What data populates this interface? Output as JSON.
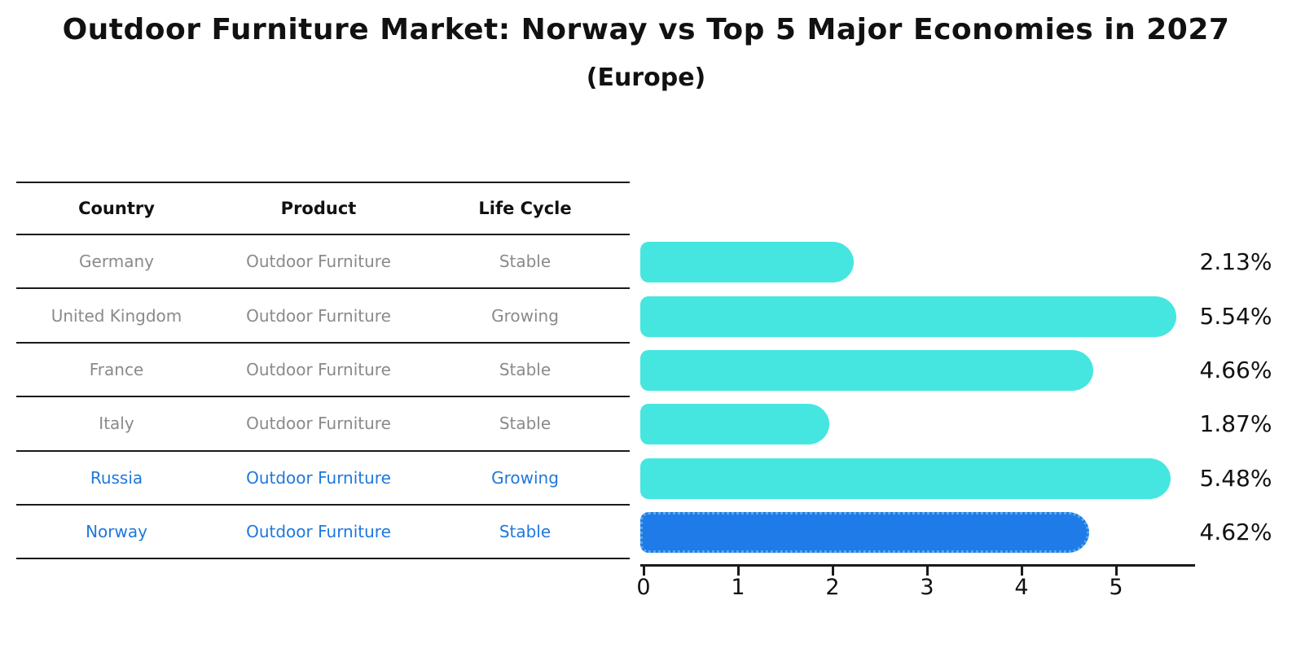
{
  "title": "Outdoor Furniture Market: Norway vs Top 5 Major Economies in 2027",
  "subtitle": "(Europe)",
  "table": {
    "columns": [
      "Country",
      "Product",
      "Life Cycle"
    ],
    "rows": [
      {
        "country": "Germany",
        "product": "Outdoor Furniture",
        "life_cycle": "Stable",
        "highlight": false
      },
      {
        "country": "United Kingdom",
        "product": "Outdoor Furniture",
        "life_cycle": "Growing",
        "highlight": false
      },
      {
        "country": "France",
        "product": "Outdoor Furniture",
        "life_cycle": "Stable",
        "highlight": false
      },
      {
        "country": "Italy",
        "product": "Outdoor Furniture",
        "life_cycle": "Stable",
        "highlight": false
      },
      {
        "country": "Russia",
        "product": "Outdoor Furniture",
        "life_cycle": "Growing",
        "highlight": true
      }
    ]
  },
  "chart_data": {
    "type": "bar",
    "orientation": "horizontal",
    "title": "Outdoor Furniture Market: Norway vs Top 5 Major Economies in 2027",
    "subtitle": "(Europe)",
    "categories": [
      "Germany",
      "United Kingdom",
      "France",
      "Italy",
      "Russia",
      "Norway"
    ],
    "values": [
      2.13,
      5.54,
      4.66,
      1.87,
      5.48,
      4.62
    ],
    "value_labels": [
      "2.13%",
      "5.54%",
      "4.66%",
      "1.87%",
      "5.48%",
      "4.62%"
    ],
    "highlight_category": "Norway",
    "xlabel": "",
    "ylabel": "",
    "xlim": [
      0,
      5.85
    ],
    "xticks": [
      "0",
      "1",
      "2",
      "3",
      "4",
      "5"
    ],
    "grid": false,
    "legend": false
  },
  "norway_row": {
    "country": "Norway",
    "product": "Outdoor Furniture",
    "life_cycle": "Stable",
    "highlight": true
  },
  "colors": {
    "bar": "#45e6e0",
    "highlight_bar": "#1e7be8",
    "highlight_border": "#5aa9f0",
    "row_text": "#8a8a8a",
    "highlight_text": "#1e78dc",
    "header_text": "#111111",
    "line": "#1a1a1a"
  }
}
